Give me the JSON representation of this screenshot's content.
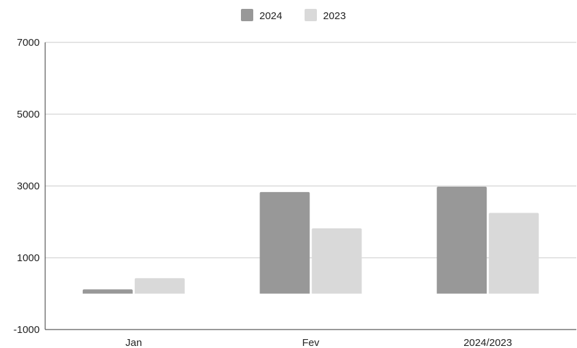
{
  "chart_data": {
    "type": "bar",
    "title": "",
    "xlabel": "",
    "ylabel": "",
    "categories": [
      "Jan",
      "Fev",
      "2024/2023"
    ],
    "series": [
      {
        "name": "2024",
        "color": "#989898",
        "values": [
          120,
          2830,
          2980
        ]
      },
      {
        "name": "2023",
        "color": "#d9d9d9",
        "values": [
          430,
          1820,
          2250
        ]
      }
    ],
    "ylim": [
      -1000,
      7000
    ],
    "yticks": [
      "7000",
      "5000",
      "3000",
      "1000",
      "-1000"
    ],
    "ytick_values": [
      7000,
      5000,
      3000,
      1000,
      -1000
    ],
    "grid": true,
    "legend_position": "top-center"
  }
}
